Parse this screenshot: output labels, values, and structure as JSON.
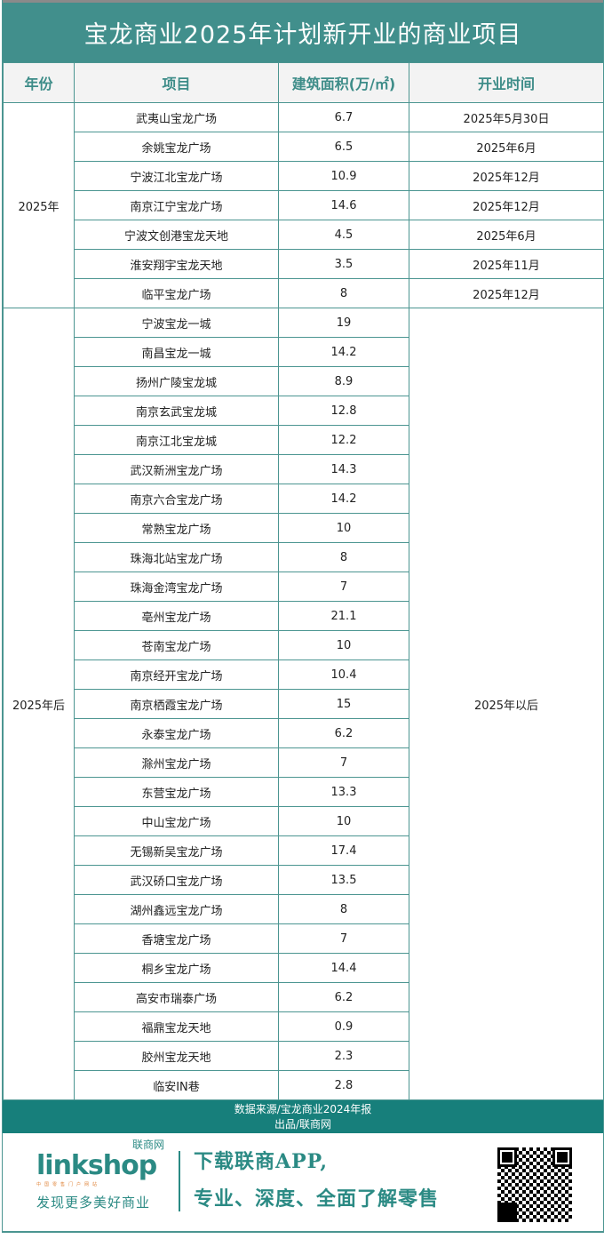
{
  "title": "宝龙商业2025年计划新开业的商业项目",
  "headers": {
    "year": "年份",
    "project": "项目",
    "area": "建筑面积(万/㎡)",
    "open": "开业时间"
  },
  "group_2025": {
    "year": "2025年",
    "rows": [
      {
        "project": "武夷山宝龙广场",
        "area": "6.7",
        "open": "2025年5月30日"
      },
      {
        "project": "余姚宝龙广场",
        "area": "6.5",
        "open": "2025年6月"
      },
      {
        "project": "宁波江北宝龙广场",
        "area": "10.9",
        "open": "2025年12月"
      },
      {
        "project": "南京江宁宝龙广场",
        "area": "14.6",
        "open": "2025年12月"
      },
      {
        "project": "宁波文创港宝龙天地",
        "area": "4.5",
        "open": "2025年6月"
      },
      {
        "project": "淮安翔宇宝龙天地",
        "area": "3.5",
        "open": "2025年11月"
      },
      {
        "project": "临平宝龙广场",
        "area": "8",
        "open": "2025年12月"
      }
    ]
  },
  "group_after": {
    "year": "2025年后",
    "open": "2025年以后",
    "rows": [
      {
        "project": "宁波宝龙一城",
        "area": "19"
      },
      {
        "project": "南昌宝龙一城",
        "area": "14.2"
      },
      {
        "project": "扬州广陵宝龙城",
        "area": "8.9"
      },
      {
        "project": "南京玄武宝龙城",
        "area": "12.8"
      },
      {
        "project": "南京江北宝龙城",
        "area": "12.2"
      },
      {
        "project": "武汉新洲宝龙广场",
        "area": "14.3"
      },
      {
        "project": "南京六合宝龙广场",
        "area": "14.2"
      },
      {
        "project": "常熟宝龙广场",
        "area": "10"
      },
      {
        "project": "珠海北站宝龙广场",
        "area": "8"
      },
      {
        "project": "珠海金湾宝龙广场",
        "area": "7"
      },
      {
        "project": "亳州宝龙广场",
        "area": "21.1"
      },
      {
        "project": "苍南宝龙广场",
        "area": "10"
      },
      {
        "project": "南京经开宝龙广场",
        "area": "10.4"
      },
      {
        "project": "南京栖霞宝龙广场",
        "area": "15"
      },
      {
        "project": "永泰宝龙广场",
        "area": "6.2"
      },
      {
        "project": "滁州宝龙广场",
        "area": "7"
      },
      {
        "project": "东营宝龙广场",
        "area": "13.3"
      },
      {
        "project": "中山宝龙广场",
        "area": "10"
      },
      {
        "project": "无锡新吴宝龙广场",
        "area": "17.4"
      },
      {
        "project": "武汉硚口宝龙广场",
        "area": "13.5"
      },
      {
        "project": "湖州鑫远宝龙广场",
        "area": "8"
      },
      {
        "project": "香塘宝龙广场",
        "area": "7"
      },
      {
        "project": "桐乡宝龙广场",
        "area": "14.4"
      },
      {
        "project": "高安市瑞泰广场",
        "area": "6.2"
      },
      {
        "project": "福鼎宝龙天地",
        "area": "0.9"
      },
      {
        "project": "胶州宝龙天地",
        "area": "2.3"
      },
      {
        "project": "临安IN巷",
        "area": "2.8"
      }
    ]
  },
  "footer": {
    "source": "数据来源/宝龙商业2024年报",
    "producer": "出品/联商网"
  },
  "ad": {
    "logo_text": "linkshop",
    "logo_cn": "联商网",
    "logo_sub": "中国零售门户网站",
    "slogan": "发现更多美好商业",
    "line1": "下载联商APP,",
    "line2": "专业、深度、全面了解零售"
  },
  "colors": {
    "title_bg": "#418f8c",
    "border": "#4b9591",
    "footer_bg": "#177f7b",
    "header_text": "#3d8c88"
  }
}
